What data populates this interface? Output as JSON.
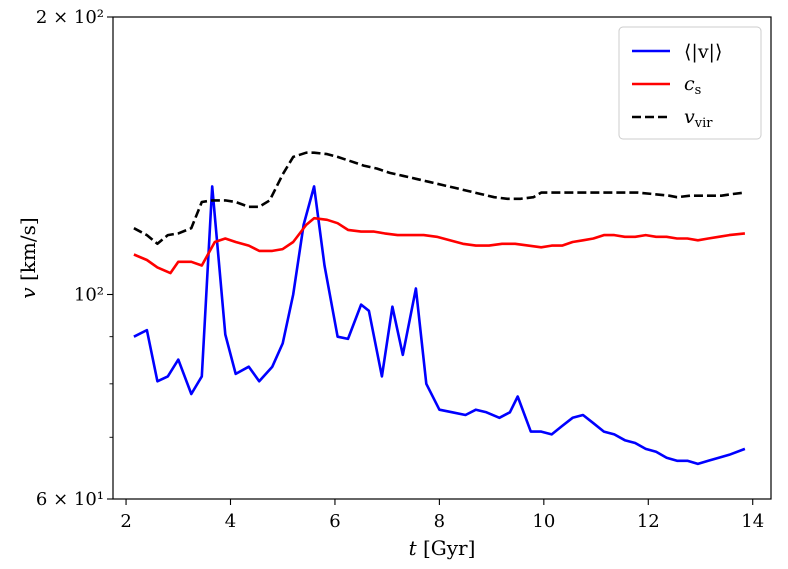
{
  "chart_data": {
    "type": "line",
    "title": "",
    "xlabel": "t [Gyr]",
    "ylabel": "v [km/s]",
    "xlim": [
      1.75,
      14.35
    ],
    "ylim": [
      60,
      200
    ],
    "yscale": "log",
    "grid": false,
    "legend_position": "top-right",
    "x_ticks": [
      2,
      4,
      6,
      8,
      10,
      12,
      14
    ],
    "y_ticks": [
      {
        "value": 60,
        "label": "6 × 10¹"
      },
      {
        "value": 100,
        "label": "10²"
      },
      {
        "value": 200,
        "label": "2 × 10²"
      }
    ],
    "series": [
      {
        "name": "⟨|v|⟩",
        "color": "#0000ff",
        "dash": "solid",
        "x": [
          2.15,
          2.4,
          2.6,
          2.8,
          3.0,
          3.25,
          3.45,
          3.65,
          3.9,
          4.1,
          4.35,
          4.55,
          4.8,
          5.0,
          5.2,
          5.4,
          5.6,
          5.8,
          6.05,
          6.25,
          6.5,
          6.65,
          6.9,
          7.1,
          7.3,
          7.55,
          7.75,
          8.0,
          8.25,
          8.5,
          8.7,
          8.9,
          9.15,
          9.35,
          9.5,
          9.75,
          9.95,
          10.15,
          10.35,
          10.55,
          10.75,
          10.95,
          11.15,
          11.35,
          11.55,
          11.75,
          11.95,
          12.15,
          12.35,
          12.55,
          12.75,
          12.95,
          13.15,
          13.35,
          13.55,
          13.85
        ],
        "values": [
          90.0,
          91.5,
          80.5,
          81.5,
          85.0,
          78.0,
          81.5,
          131.0,
          90.5,
          82.0,
          83.5,
          80.5,
          83.5,
          88.5,
          100.0,
          119.0,
          131.0,
          107.5,
          90.0,
          89.5,
          97.5,
          96.0,
          81.5,
          97.0,
          86.0,
          101.5,
          80.0,
          75.0,
          74.5,
          74.0,
          75.0,
          74.5,
          73.5,
          74.5,
          77.5,
          71.0,
          71.0,
          70.5,
          72.0,
          73.5,
          74.0,
          72.5,
          71.0,
          70.5,
          69.5,
          69.0,
          68.0,
          67.5,
          66.5,
          66.0,
          66.0,
          65.5,
          66.0,
          66.5,
          67.0,
          68.0
        ]
      },
      {
        "name": "c_s",
        "color": "#ff0000",
        "dash": "solid",
        "x": [
          2.15,
          2.4,
          2.6,
          2.85,
          3.0,
          3.25,
          3.45,
          3.7,
          3.9,
          4.1,
          4.35,
          4.55,
          4.8,
          5.0,
          5.2,
          5.45,
          5.6,
          5.85,
          6.05,
          6.25,
          6.5,
          6.75,
          6.95,
          7.2,
          7.45,
          7.7,
          7.95,
          8.2,
          8.45,
          8.7,
          8.95,
          9.2,
          9.45,
          9.7,
          9.95,
          10.15,
          10.35,
          10.55,
          10.75,
          10.95,
          11.15,
          11.35,
          11.55,
          11.75,
          11.95,
          12.15,
          12.35,
          12.55,
          12.75,
          12.95,
          13.15,
          13.35,
          13.55,
          13.85
        ],
        "values": [
          110.5,
          109.0,
          107.0,
          105.5,
          108.5,
          108.5,
          107.5,
          114.0,
          115.0,
          114.0,
          113.0,
          111.5,
          111.5,
          112.0,
          114.0,
          119.0,
          121.0,
          120.5,
          119.5,
          117.5,
          117.0,
          117.0,
          116.5,
          116.0,
          116.0,
          116.0,
          115.5,
          114.5,
          113.5,
          113.0,
          113.0,
          113.5,
          113.5,
          113.0,
          112.5,
          113.0,
          113.0,
          114.0,
          114.5,
          115.0,
          116.0,
          116.0,
          115.5,
          115.5,
          116.0,
          115.5,
          115.5,
          115.0,
          115.0,
          114.5,
          115.0,
          115.5,
          116.0,
          116.5
        ]
      },
      {
        "name": "v_vir",
        "color": "#000000",
        "dash": "dashed",
        "x": [
          2.15,
          2.4,
          2.6,
          2.8,
          3.0,
          3.25,
          3.45,
          3.65,
          3.9,
          4.1,
          4.35,
          4.55,
          4.75,
          5.0,
          5.2,
          5.45,
          5.6,
          5.85,
          6.05,
          6.3,
          6.55,
          6.8,
          7.05,
          7.3,
          7.55,
          7.8,
          8.05,
          8.3,
          8.55,
          8.8,
          9.05,
          9.3,
          9.55,
          9.8,
          9.95,
          10.3,
          10.6,
          10.9,
          11.2,
          11.5,
          11.8,
          12.1,
          12.4,
          12.55,
          12.8,
          13.1,
          13.4,
          13.6,
          13.85
        ],
        "values": [
          118.0,
          116.0,
          113.5,
          116.0,
          116.5,
          118.0,
          126.0,
          126.5,
          126.5,
          126.0,
          124.5,
          124.5,
          126.5,
          135.0,
          141.0,
          142.5,
          142.5,
          142.0,
          141.0,
          139.5,
          138.0,
          137.0,
          135.5,
          134.5,
          133.5,
          132.5,
          131.5,
          130.5,
          129.5,
          128.5,
          127.5,
          127.0,
          127.0,
          127.5,
          129.0,
          129.0,
          129.0,
          129.0,
          129.0,
          129.0,
          129.0,
          128.5,
          128.0,
          127.5,
          128.0,
          128.0,
          128.0,
          128.5,
          129.0
        ]
      }
    ]
  },
  "legend": {
    "mean_v": "⟨|v|⟩",
    "cs_main": "c",
    "cs_sub": "s",
    "vvir_main": "v",
    "vvir_sub": "vir"
  },
  "axis_text": {
    "xlabel_var": "t",
    "xlabel_unit": " [Gyr]",
    "ylabel_var": "v",
    "ylabel_unit": " [km/s]"
  }
}
